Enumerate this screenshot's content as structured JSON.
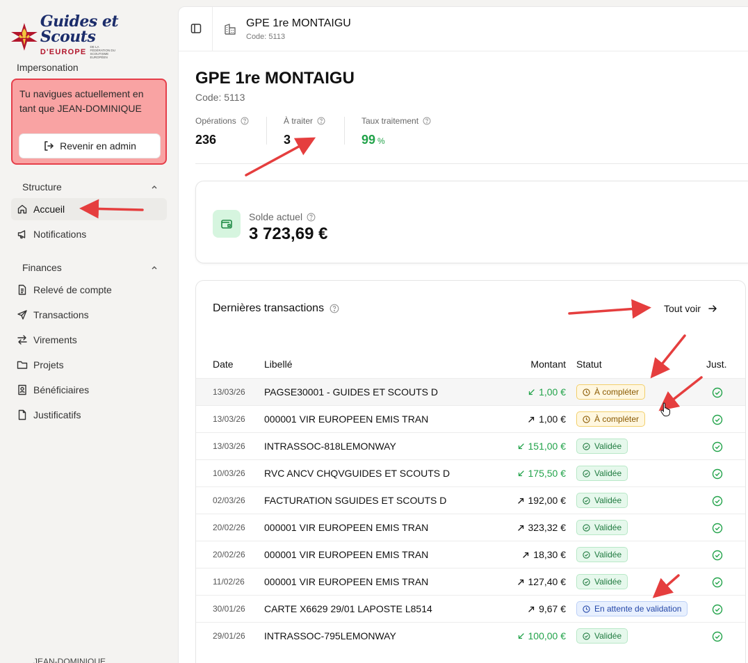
{
  "brand": {
    "script": "Guides et Scouts",
    "europe": "D'EUROPE",
    "federation": "DE LA FÉDÉRATION DU SCOUTISME EUROPÉEN"
  },
  "impersonation": {
    "title": "Impersonation",
    "message": "Tu navigues actuellement en tant que JEAN-DOMINIQUE",
    "button_label": "Revenir en admin"
  },
  "sidebar": {
    "structure_label": "Structure",
    "structure_items": [
      {
        "label": "Accueil",
        "icon": "home-icon"
      },
      {
        "label": "Notifications",
        "icon": "megaphone-icon"
      }
    ],
    "finances_label": "Finances",
    "finances_items": [
      {
        "label": "Relevé de compte",
        "icon": "document-icon"
      },
      {
        "label": "Transactions",
        "icon": "send-icon"
      },
      {
        "label": "Virements",
        "icon": "transfer-icon"
      },
      {
        "label": "Projets",
        "icon": "folder-icon"
      },
      {
        "label": "Bénéficiaires",
        "icon": "contact-icon"
      },
      {
        "label": "Justificatifs",
        "icon": "file-icon"
      }
    ],
    "footer_user": "JEAN-DOMINIQUE"
  },
  "topbar": {
    "title": "GPE 1re MONTAIGU",
    "code": "Code: 5113"
  },
  "page": {
    "title": "GPE 1re MONTAIGU",
    "code": "Code: 5113"
  },
  "stats": [
    {
      "label": "Opérations",
      "value": "236"
    },
    {
      "label": "À traiter",
      "value": "3"
    },
    {
      "label": "Taux traitement",
      "value": "99",
      "unit": "%"
    }
  ],
  "balance": {
    "label": "Solde actuel",
    "value": "3 723,69 €"
  },
  "transactions": {
    "title": "Dernières transactions",
    "see_all": "Tout voir",
    "columns": {
      "date": "Date",
      "label": "Libellé",
      "amount": "Montant",
      "status": "Statut",
      "just": "Just."
    },
    "rows": [
      {
        "date": "13/03/26",
        "label": "PAGSE30001 - GUIDES ET SCOUTS D",
        "amount": "1,00 €",
        "direction": "in",
        "status": "À compléter",
        "status_type": "warn"
      },
      {
        "date": "13/03/26",
        "label": "000001 VIR EUROPEEN EMIS TRAN",
        "amount": "1,00 €",
        "direction": "out",
        "status": "À compléter",
        "status_type": "warn"
      },
      {
        "date": "13/03/26",
        "label": "INTRASSOC-818LEMONWAY",
        "amount": "151,00 €",
        "direction": "in",
        "status": "Validée",
        "status_type": "ok"
      },
      {
        "date": "10/03/26",
        "label": "RVC ANCV CHQVGUIDES ET SCOUTS D",
        "amount": "175,50 €",
        "direction": "in",
        "status": "Validée",
        "status_type": "ok"
      },
      {
        "date": "02/03/26",
        "label": "FACTURATION SGUIDES ET SCOUTS D",
        "amount": "192,00 €",
        "direction": "out",
        "status": "Validée",
        "status_type": "ok"
      },
      {
        "date": "20/02/26",
        "label": "000001 VIR EUROPEEN EMIS TRAN",
        "amount": "323,32 €",
        "direction": "out",
        "status": "Validée",
        "status_type": "ok"
      },
      {
        "date": "20/02/26",
        "label": "000001 VIR EUROPEEN EMIS TRAN",
        "amount": "18,30 €",
        "direction": "out",
        "status": "Validée",
        "status_type": "ok"
      },
      {
        "date": "11/02/26",
        "label": "000001 VIR EUROPEEN EMIS TRAN",
        "amount": "127,40 €",
        "direction": "out",
        "status": "Validée",
        "status_type": "ok"
      },
      {
        "date": "30/01/26",
        "label": "CARTE X6629 29/01 LAPOSTE L8514",
        "amount": "9,67 €",
        "direction": "out",
        "status": "En attente de validation",
        "status_type": "wait"
      },
      {
        "date": "29/01/26",
        "label": "INTRASSOC-795LEMONWAY",
        "amount": "100,00 €",
        "direction": "in",
        "status": "Validée",
        "status_type": "ok"
      }
    ]
  },
  "colors": {
    "accent_green": "#22a34a",
    "annotation_red": "#e53e3e",
    "impersonation_bg": "#f9a3a3",
    "impersonation_border": "#e53e4a"
  }
}
